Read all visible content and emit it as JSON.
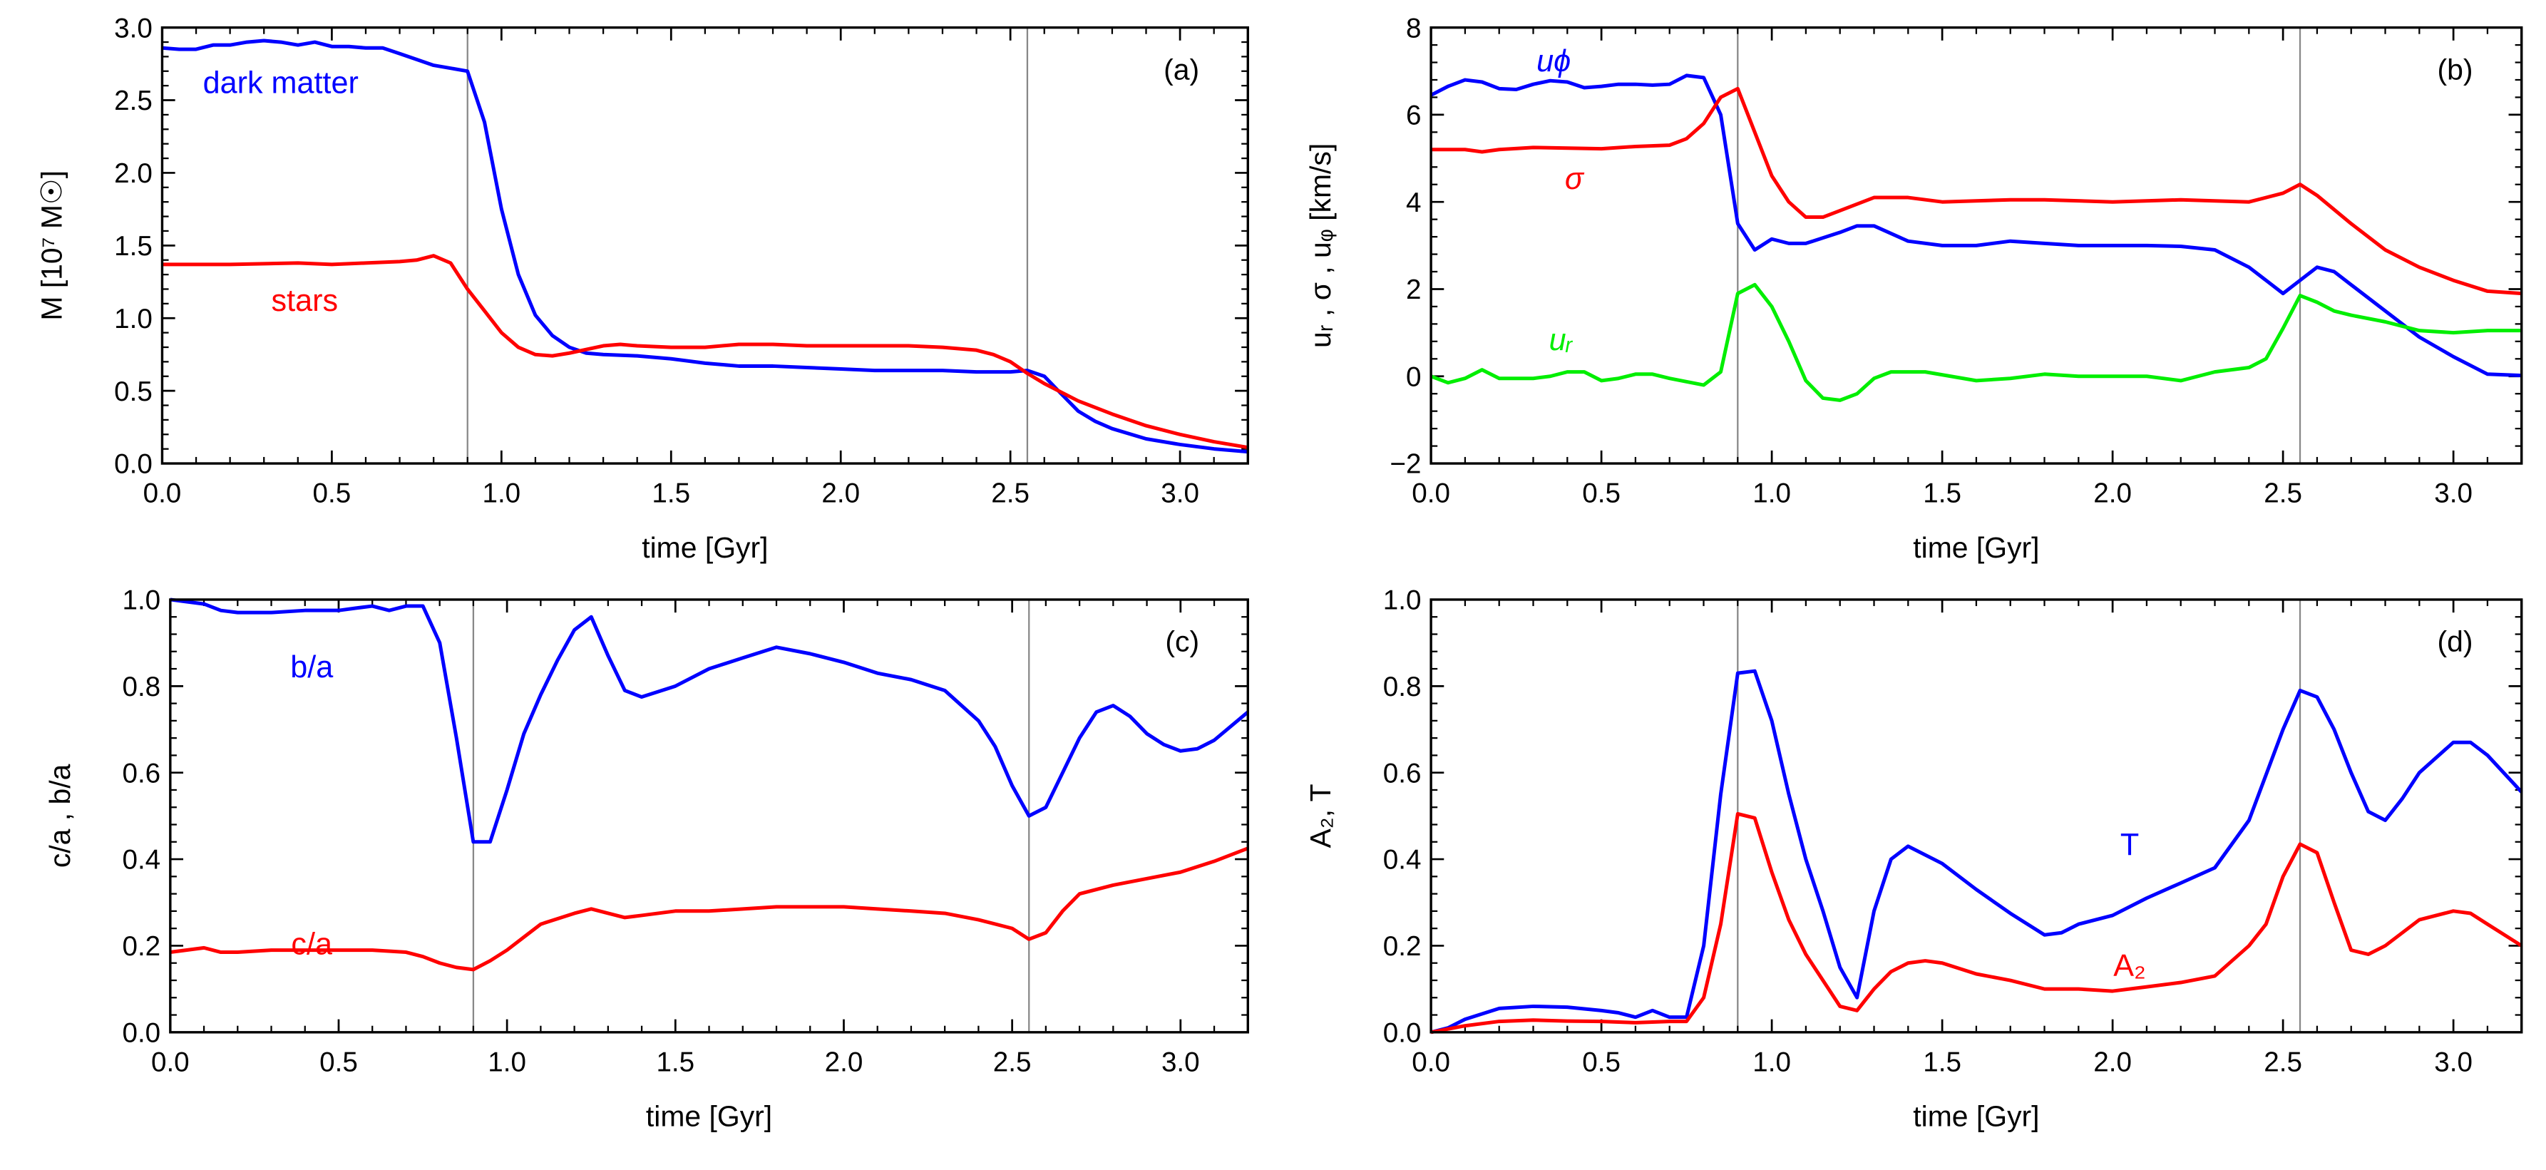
{
  "chart_data": [
    {
      "type": "line",
      "panel_label": "(a)",
      "xlabel": "time [Gyr]",
      "ylabel": "M [10⁷ M☉]",
      "xlim": [
        0,
        3.2
      ],
      "ylim": [
        0,
        3.0
      ],
      "xticks": [
        "0.0",
        "0.5",
        "1.0",
        "1.5",
        "2.0",
        "2.5",
        "3.0"
      ],
      "yticks": [
        "0.0",
        "0.5",
        "1.0",
        "1.5",
        "2.0",
        "2.5",
        "3.0"
      ],
      "vlines": [
        0.9,
        2.55
      ],
      "series": [
        {
          "name": "dark matter",
          "color": "#0000ff",
          "x": [
            0,
            0.05,
            0.1,
            0.15,
            0.2,
            0.25,
            0.3,
            0.35,
            0.4,
            0.45,
            0.5,
            0.55,
            0.6,
            0.65,
            0.7,
            0.75,
            0.8,
            0.85,
            0.9,
            0.95,
            1.0,
            1.05,
            1.1,
            1.15,
            1.2,
            1.25,
            1.3,
            1.4,
            1.5,
            1.6,
            1.7,
            1.8,
            1.9,
            2.0,
            2.1,
            2.2,
            2.3,
            2.4,
            2.5,
            2.55,
            2.6,
            2.65,
            2.7,
            2.75,
            2.8,
            2.9,
            3.0,
            3.1,
            3.2
          ],
          "y": [
            2.86,
            2.85,
            2.85,
            2.88,
            2.88,
            2.9,
            2.91,
            2.9,
            2.88,
            2.9,
            2.87,
            2.87,
            2.86,
            2.86,
            2.82,
            2.78,
            2.74,
            2.72,
            2.7,
            2.35,
            1.75,
            1.3,
            1.02,
            0.88,
            0.8,
            0.76,
            0.75,
            0.74,
            0.72,
            0.69,
            0.67,
            0.67,
            0.66,
            0.65,
            0.64,
            0.64,
            0.64,
            0.63,
            0.63,
            0.64,
            0.6,
            0.48,
            0.36,
            0.29,
            0.24,
            0.17,
            0.13,
            0.1,
            0.08
          ]
        },
        {
          "name": "stars",
          "color": "#ff0000",
          "x": [
            0,
            0.2,
            0.4,
            0.5,
            0.6,
            0.7,
            0.75,
            0.8,
            0.85,
            0.9,
            0.95,
            1.0,
            1.05,
            1.1,
            1.15,
            1.2,
            1.3,
            1.35,
            1.4,
            1.5,
            1.6,
            1.7,
            1.8,
            1.9,
            2.0,
            2.2,
            2.3,
            2.4,
            2.45,
            2.5,
            2.55,
            2.6,
            2.7,
            2.8,
            2.9,
            3.0,
            3.1,
            3.2
          ],
          "y": [
            1.37,
            1.37,
            1.38,
            1.37,
            1.38,
            1.39,
            1.4,
            1.43,
            1.38,
            1.2,
            1.05,
            0.9,
            0.8,
            0.75,
            0.74,
            0.76,
            0.81,
            0.82,
            0.81,
            0.8,
            0.8,
            0.82,
            0.82,
            0.81,
            0.81,
            0.81,
            0.8,
            0.78,
            0.75,
            0.7,
            0.62,
            0.55,
            0.43,
            0.34,
            0.26,
            0.2,
            0.15,
            0.11
          ]
        }
      ]
    },
    {
      "type": "line",
      "panel_label": "(b)",
      "xlabel": "time [Gyr]",
      "ylabel": "uᵣ ,  σ ,  uᵩ [km/s]",
      "xlim": [
        0,
        3.2
      ],
      "ylim": [
        -2,
        8
      ],
      "xticks": [
        "0.0",
        "0.5",
        "1.0",
        "1.5",
        "2.0",
        "2.5",
        "3.0"
      ],
      "yticks": [
        "−2",
        "0",
        "2",
        "4",
        "6",
        "8"
      ],
      "vlines": [
        0.9,
        2.55
      ],
      "series": [
        {
          "name": "uϕ",
          "color": "#0000ff",
          "x": [
            0,
            0.05,
            0.1,
            0.15,
            0.2,
            0.25,
            0.3,
            0.35,
            0.4,
            0.45,
            0.5,
            0.55,
            0.6,
            0.65,
            0.7,
            0.75,
            0.8,
            0.85,
            0.9,
            0.95,
            1.0,
            1.05,
            1.1,
            1.2,
            1.25,
            1.3,
            1.4,
            1.5,
            1.6,
            1.7,
            1.8,
            1.9,
            2.0,
            2.1,
            2.2,
            2.3,
            2.4,
            2.5,
            2.55,
            2.6,
            2.65,
            2.7,
            2.8,
            2.9,
            3.0,
            3.1,
            3.2
          ],
          "y": [
            6.45,
            6.65,
            6.8,
            6.75,
            6.6,
            6.58,
            6.7,
            6.78,
            6.75,
            6.62,
            6.65,
            6.7,
            6.7,
            6.68,
            6.7,
            6.9,
            6.85,
            6.0,
            3.5,
            2.9,
            3.15,
            3.05,
            3.05,
            3.3,
            3.45,
            3.45,
            3.1,
            3.0,
            3.0,
            3.1,
            3.05,
            3.0,
            3.0,
            3.0,
            2.98,
            2.9,
            2.5,
            1.9,
            2.2,
            2.5,
            2.4,
            2.1,
            1.5,
            0.9,
            0.45,
            0.05,
            0.02
          ]
        },
        {
          "name": "σ",
          "color": "#ff0000",
          "x": [
            0,
            0.1,
            0.15,
            0.2,
            0.3,
            0.5,
            0.6,
            0.7,
            0.75,
            0.8,
            0.85,
            0.9,
            0.95,
            1.0,
            1.05,
            1.1,
            1.15,
            1.2,
            1.3,
            1.4,
            1.5,
            1.7,
            1.8,
            2.0,
            2.2,
            2.4,
            2.5,
            2.55,
            2.6,
            2.7,
            2.8,
            2.9,
            3.0,
            3.1,
            3.2
          ],
          "y": [
            5.2,
            5.2,
            5.15,
            5.2,
            5.25,
            5.22,
            5.27,
            5.3,
            5.45,
            5.8,
            6.4,
            6.6,
            5.6,
            4.6,
            4.0,
            3.65,
            3.65,
            3.8,
            4.1,
            4.1,
            4.0,
            4.05,
            4.05,
            4.0,
            4.05,
            4.0,
            4.2,
            4.4,
            4.15,
            3.5,
            2.9,
            2.5,
            2.2,
            1.95,
            1.9
          ]
        },
        {
          "name": "uᵣ",
          "color": "#00ee00",
          "x": [
            0,
            0.05,
            0.1,
            0.15,
            0.2,
            0.3,
            0.35,
            0.4,
            0.45,
            0.5,
            0.55,
            0.6,
            0.65,
            0.7,
            0.8,
            0.85,
            0.9,
            0.95,
            1.0,
            1.05,
            1.1,
            1.15,
            1.2,
            1.25,
            1.3,
            1.35,
            1.45,
            1.6,
            1.7,
            1.8,
            1.9,
            2.1,
            2.2,
            2.3,
            2.4,
            2.45,
            2.5,
            2.55,
            2.6,
            2.65,
            2.7,
            2.8,
            2.9,
            3.0,
            3.1,
            3.2
          ],
          "y": [
            0,
            -0.15,
            -0.05,
            0.15,
            -0.05,
            -0.05,
            0,
            0.1,
            0.1,
            -0.1,
            -0.05,
            0.05,
            0.05,
            -0.05,
            -0.2,
            0.1,
            1.9,
            2.1,
            1.6,
            0.8,
            -0.1,
            -0.5,
            -0.55,
            -0.4,
            -0.05,
            0.1,
            0.1,
            -0.1,
            -0.05,
            0.05,
            0,
            0,
            -0.1,
            0.1,
            0.2,
            0.4,
            1.1,
            1.85,
            1.7,
            1.5,
            1.4,
            1.25,
            1.05,
            1.0,
            1.05,
            1.05
          ]
        }
      ]
    },
    {
      "type": "line",
      "panel_label": "(c)",
      "xlabel": "time [Gyr]",
      "ylabel": "c/a ,  b/a",
      "xlim": [
        0,
        3.2
      ],
      "ylim": [
        0,
        1.0
      ],
      "xticks": [
        "0.0",
        "0.5",
        "1.0",
        "1.5",
        "2.0",
        "2.5",
        "3.0"
      ],
      "yticks": [
        "0.0",
        "0.2",
        "0.4",
        "0.6",
        "0.8",
        "1.0"
      ],
      "vlines": [
        0.9,
        2.55
      ],
      "series": [
        {
          "name": "b/a",
          "color": "#0000ff",
          "x": [
            0,
            0.1,
            0.15,
            0.2,
            0.3,
            0.4,
            0.5,
            0.55,
            0.6,
            0.65,
            0.7,
            0.75,
            0.8,
            0.85,
            0.9,
            0.95,
            1.0,
            1.05,
            1.1,
            1.15,
            1.2,
            1.25,
            1.3,
            1.35,
            1.4,
            1.5,
            1.6,
            1.7,
            1.8,
            1.9,
            2.0,
            2.1,
            2.2,
            2.3,
            2.4,
            2.45,
            2.5,
            2.55,
            2.6,
            2.65,
            2.7,
            2.75,
            2.8,
            2.85,
            2.9,
            2.95,
            3.0,
            3.05,
            3.1,
            3.2
          ],
          "y": [
            1.0,
            0.99,
            0.975,
            0.97,
            0.97,
            0.975,
            0.975,
            0.98,
            0.985,
            0.975,
            0.985,
            0.985,
            0.9,
            0.68,
            0.44,
            0.44,
            0.56,
            0.69,
            0.78,
            0.86,
            0.93,
            0.96,
            0.87,
            0.79,
            0.775,
            0.8,
            0.84,
            0.865,
            0.89,
            0.875,
            0.855,
            0.83,
            0.815,
            0.79,
            0.72,
            0.66,
            0.57,
            0.5,
            0.52,
            0.6,
            0.68,
            0.74,
            0.755,
            0.73,
            0.69,
            0.665,
            0.65,
            0.655,
            0.675,
            0.74
          ]
        },
        {
          "name": "c/a",
          "color": "#ff0000",
          "x": [
            0,
            0.1,
            0.15,
            0.2,
            0.3,
            0.4,
            0.5,
            0.6,
            0.7,
            0.75,
            0.8,
            0.85,
            0.9,
            0.95,
            1.0,
            1.05,
            1.1,
            1.2,
            1.25,
            1.3,
            1.35,
            1.4,
            1.5,
            1.6,
            1.7,
            1.8,
            2.0,
            2.1,
            2.2,
            2.3,
            2.4,
            2.5,
            2.55,
            2.6,
            2.65,
            2.7,
            2.8,
            2.9,
            3.0,
            3.1,
            3.2
          ],
          "y": [
            0.185,
            0.195,
            0.185,
            0.185,
            0.19,
            0.19,
            0.19,
            0.19,
            0.185,
            0.175,
            0.16,
            0.15,
            0.145,
            0.165,
            0.19,
            0.22,
            0.25,
            0.275,
            0.285,
            0.275,
            0.265,
            0.27,
            0.28,
            0.28,
            0.285,
            0.29,
            0.29,
            0.285,
            0.28,
            0.275,
            0.26,
            0.24,
            0.215,
            0.23,
            0.28,
            0.32,
            0.34,
            0.355,
            0.37,
            0.395,
            0.425
          ]
        }
      ]
    },
    {
      "type": "line",
      "panel_label": "(d)",
      "xlabel": "time [Gyr]",
      "ylabel": "A₂,  T",
      "xlim": [
        0,
        3.2
      ],
      "ylim": [
        0,
        1.0
      ],
      "xticks": [
        "0.0",
        "0.5",
        "1.0",
        "1.5",
        "2.0",
        "2.5",
        "3.0"
      ],
      "yticks": [
        "0.0",
        "0.2",
        "0.4",
        "0.6",
        "0.8",
        "1.0"
      ],
      "vlines": [
        0.9,
        2.55
      ],
      "series": [
        {
          "name": "T",
          "color": "#0000ff",
          "x": [
            0,
            0.05,
            0.1,
            0.2,
            0.3,
            0.4,
            0.5,
            0.55,
            0.6,
            0.65,
            0.7,
            0.75,
            0.8,
            0.85,
            0.9,
            0.95,
            1.0,
            1.05,
            1.1,
            1.15,
            1.2,
            1.25,
            1.3,
            1.35,
            1.4,
            1.5,
            1.6,
            1.7,
            1.8,
            1.85,
            1.9,
            2.0,
            2.1,
            2.2,
            2.3,
            2.4,
            2.5,
            2.55,
            2.6,
            2.65,
            2.7,
            2.75,
            2.8,
            2.85,
            2.9,
            3.0,
            3.05,
            3.1,
            3.2
          ],
          "y": [
            0,
            0.01,
            0.03,
            0.055,
            0.06,
            0.058,
            0.05,
            0.045,
            0.035,
            0.05,
            0.035,
            0.035,
            0.2,
            0.55,
            0.83,
            0.835,
            0.72,
            0.55,
            0.4,
            0.28,
            0.15,
            0.08,
            0.28,
            0.4,
            0.43,
            0.39,
            0.33,
            0.275,
            0.225,
            0.23,
            0.25,
            0.27,
            0.31,
            0.345,
            0.38,
            0.49,
            0.7,
            0.79,
            0.775,
            0.7,
            0.6,
            0.51,
            0.49,
            0.54,
            0.6,
            0.67,
            0.67,
            0.64,
            0.555
          ]
        },
        {
          "name": "A₂",
          "color": "#ff0000",
          "x": [
            0,
            0.1,
            0.2,
            0.3,
            0.4,
            0.5,
            0.6,
            0.7,
            0.75,
            0.8,
            0.85,
            0.9,
            0.95,
            1.0,
            1.05,
            1.1,
            1.15,
            1.2,
            1.25,
            1.3,
            1.35,
            1.4,
            1.45,
            1.5,
            1.6,
            1.7,
            1.8,
            1.9,
            2.0,
            2.1,
            2.2,
            2.3,
            2.4,
            2.45,
            2.5,
            2.55,
            2.6,
            2.65,
            2.7,
            2.75,
            2.8,
            2.9,
            3.0,
            3.05,
            3.1,
            3.2
          ],
          "y": [
            0,
            0.015,
            0.025,
            0.028,
            0.026,
            0.025,
            0.022,
            0.025,
            0.025,
            0.08,
            0.25,
            0.505,
            0.495,
            0.37,
            0.26,
            0.18,
            0.12,
            0.06,
            0.05,
            0.1,
            0.14,
            0.16,
            0.165,
            0.16,
            0.135,
            0.12,
            0.1,
            0.1,
            0.095,
            0.105,
            0.115,
            0.13,
            0.2,
            0.25,
            0.36,
            0.435,
            0.415,
            0.3,
            0.19,
            0.18,
            0.2,
            0.26,
            0.28,
            0.275,
            0.25,
            0.2
          ]
        }
      ]
    }
  ]
}
